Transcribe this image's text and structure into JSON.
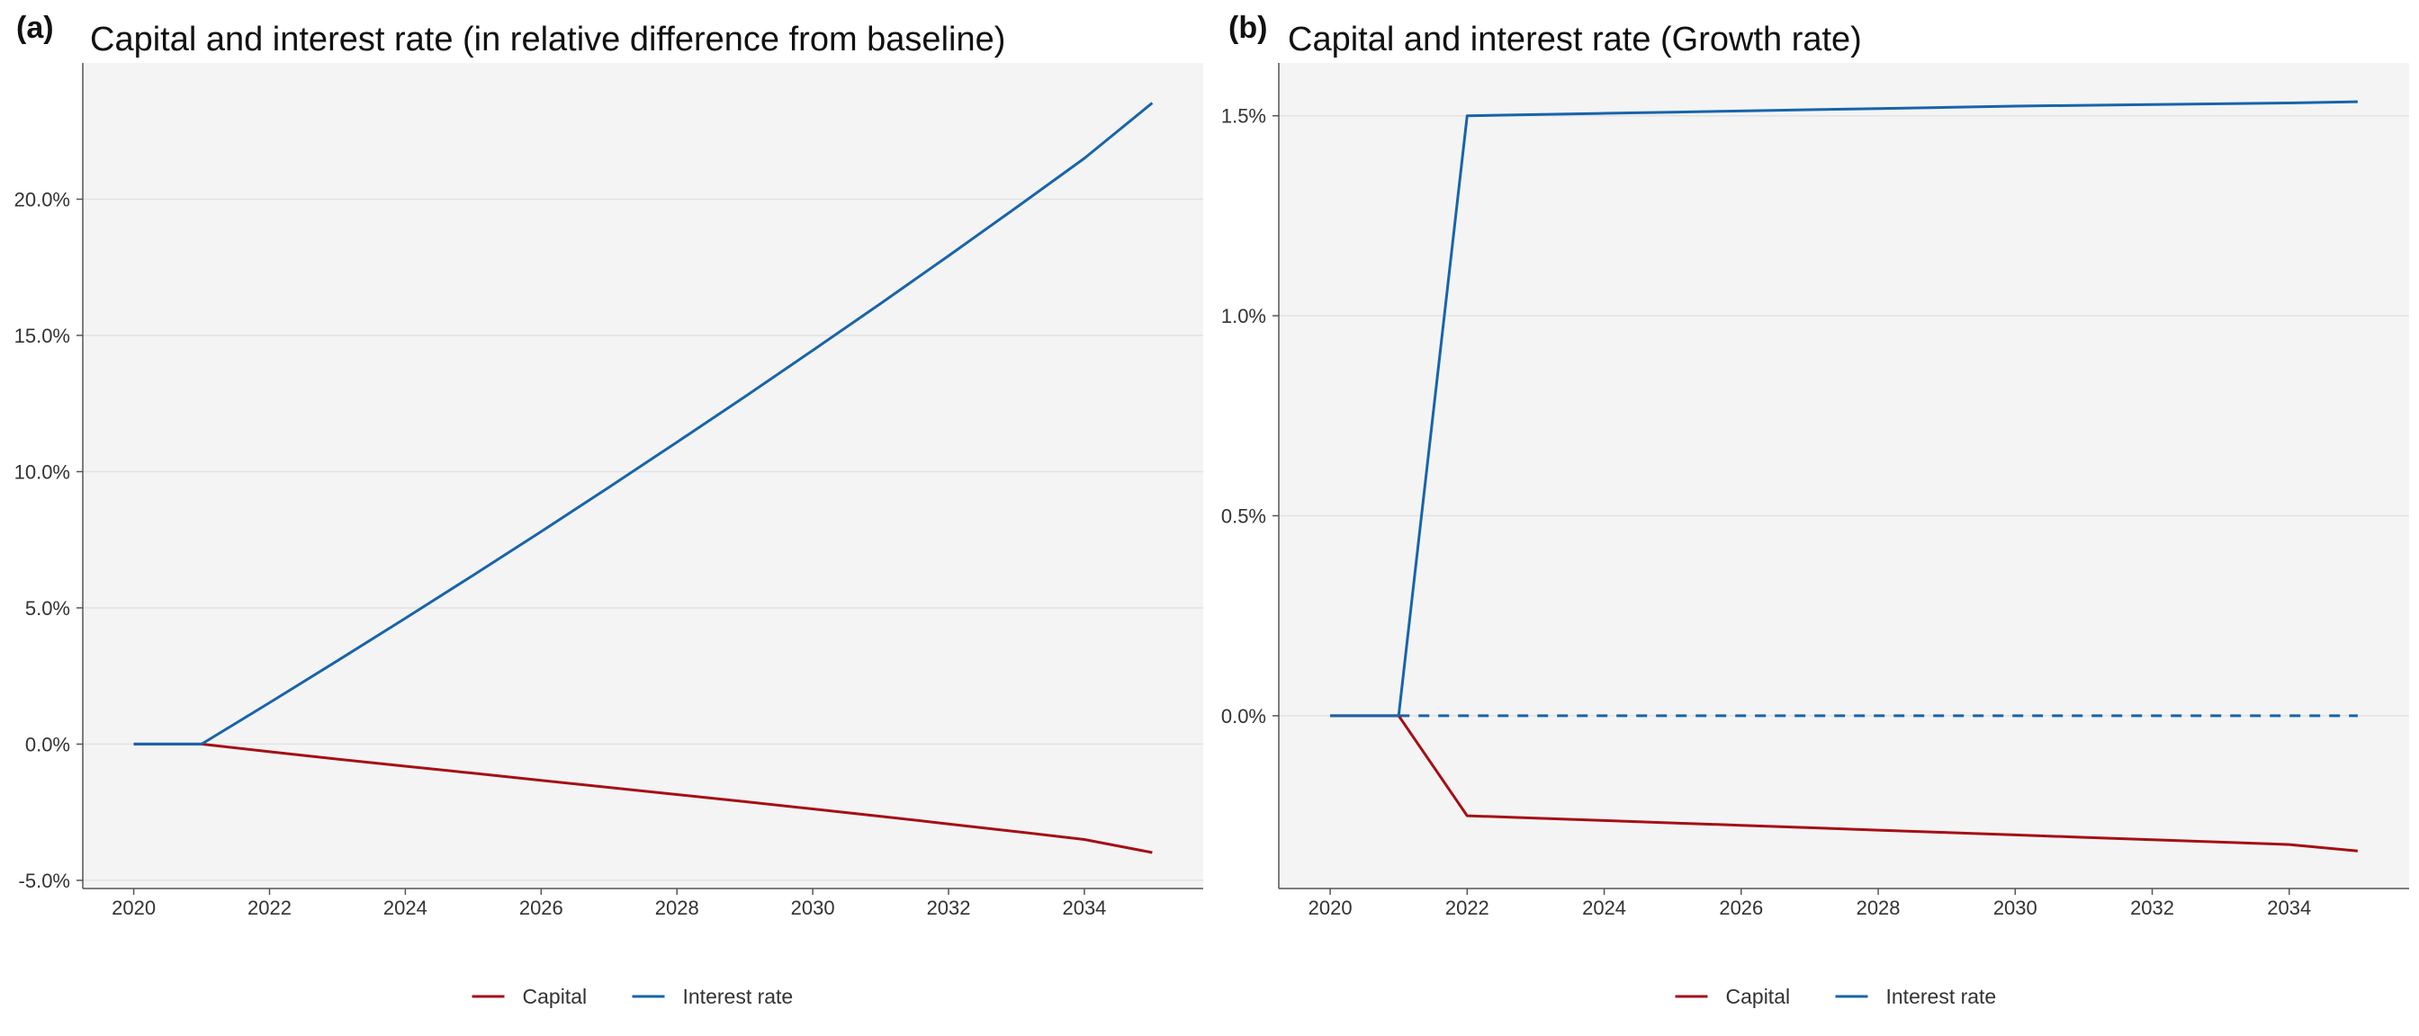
{
  "colors": {
    "capital": "#a50f15",
    "interest": "#1764ab"
  },
  "legend": [
    {
      "name": "Capital",
      "color": "#a50f15"
    },
    {
      "name": "Interest rate",
      "color": "#1764ab"
    }
  ],
  "chart_data": [
    {
      "type": "line",
      "panel_label": "(a)",
      "title": "Capital and interest rate (in relative difference from baseline)",
      "xlabel": "",
      "ylabel": "",
      "x": [
        2020,
        2021,
        2022,
        2023,
        2024,
        2025,
        2026,
        2027,
        2028,
        2029,
        2030,
        2031,
        2032,
        2033,
        2034,
        2035
      ],
      "xticks": [
        2020,
        2022,
        2024,
        2026,
        2028,
        2030,
        2032,
        2034
      ],
      "xlim": [
        2019.25,
        2035.75
      ],
      "yticks": [
        -0.05,
        0.0,
        0.05,
        0.1,
        0.15,
        0.2
      ],
      "ytick_labels": [
        "-5.0%",
        "0.0%",
        "5.0%",
        "10.0%",
        "15.0%",
        "20.0%"
      ],
      "ylim": [
        -0.053,
        0.25
      ],
      "grid": true,
      "legend_position": "bottom-center",
      "series": [
        {
          "name": "Capital",
          "color": "#a50f15",
          "dashed": false,
          "values": [
            0,
            0,
            -0.0028,
            -0.0055,
            -0.0081,
            -0.0107,
            -0.0133,
            -0.0159,
            -0.0185,
            -0.0211,
            -0.0238,
            -0.0265,
            -0.0293,
            -0.0321,
            -0.035,
            -0.0398
          ]
        },
        {
          "name": "Interest rate",
          "color": "#1764ab",
          "dashed": false,
          "values": [
            0,
            0,
            0.0152,
            0.0306,
            0.0462,
            0.062,
            0.078,
            0.0943,
            0.1108,
            0.1275,
            0.1445,
            0.1617,
            0.1792,
            0.197,
            0.215,
            0.2353
          ]
        }
      ]
    },
    {
      "type": "line",
      "panel_label": "(b)",
      "title": "Capital and interest rate (Growth rate)",
      "xlabel": "",
      "ylabel": "",
      "x": [
        2020,
        2021,
        2022,
        2023,
        2024,
        2025,
        2026,
        2027,
        2028,
        2029,
        2030,
        2031,
        2032,
        2033,
        2034,
        2035
      ],
      "xticks": [
        2020,
        2022,
        2024,
        2026,
        2028,
        2030,
        2032,
        2034
      ],
      "xlim": [
        2019.25,
        2035.75
      ],
      "yticks": [
        0.0,
        0.005,
        0.01,
        0.015
      ],
      "ytick_labels": [
        "0.0%",
        "0.5%",
        "1.0%",
        "1.5%"
      ],
      "ylim": [
        -0.00432,
        0.01632
      ],
      "grid": true,
      "legend_position": "bottom-center",
      "reference_line": {
        "y": 0.0,
        "color": "#1764ab",
        "x_from": 2021,
        "x_to": 2035
      },
      "series": [
        {
          "name": "Capital",
          "color": "#a50f15",
          "dashed": false,
          "values": [
            0,
            0,
            -0.0025,
            -0.00256,
            -0.00262,
            -0.00268,
            -0.00274,
            -0.0028,
            -0.00286,
            -0.00292,
            -0.00298,
            -0.00304,
            -0.0031,
            -0.00316,
            -0.00322,
            -0.00338
          ]
        },
        {
          "name": "Interest rate",
          "color": "#1764ab",
          "dashed": false,
          "values": [
            0,
            0,
            0.015,
            0.01503,
            0.01506,
            0.01509,
            0.01512,
            0.01515,
            0.01518,
            0.01521,
            0.01524,
            0.01526,
            0.01528,
            0.0153,
            0.01532,
            0.01535
          ]
        }
      ]
    }
  ]
}
